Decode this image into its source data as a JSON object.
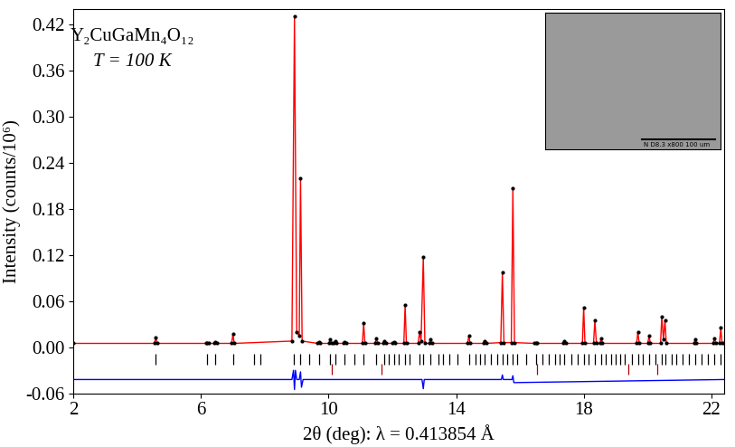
{
  "chart_data": {
    "type": "line",
    "annotations": [
      "Y₂CuGaMn₄O₁₂",
      "T = 100 K"
    ],
    "x_label": "2θ (deg): λ = 0.413854 Å",
    "y_label": "Intensity (counts/10⁶)",
    "xlim": [
      2,
      22.4
    ],
    "xticks": [
      2,
      6,
      10,
      14,
      18,
      22
    ],
    "ylim": [
      -0.06,
      0.44
    ],
    "yticks": [
      {
        "value": -0.06,
        "label": "-0.06"
      },
      {
        "value": 0,
        "label": "0.00"
      },
      {
        "value": 0.06,
        "label": "0.06"
      },
      {
        "value": 0.12,
        "label": "0.12"
      },
      {
        "value": 0.18,
        "label": "0.18"
      },
      {
        "value": 0.24,
        "label": "0.24"
      },
      {
        "value": 0.3,
        "label": "0.30"
      },
      {
        "value": 0.36,
        "label": "0.36"
      },
      {
        "value": 0.42,
        "label": "0.42"
      }
    ],
    "grid": false,
    "inset_text": "N D8.3 x800 100 um",
    "series": [
      {
        "type": "scatter",
        "color": "#000000",
        "marker": "o",
        "x": [
          2.0,
          4.54,
          4.58,
          4.62,
          6.16,
          6.2,
          6.24,
          6.41,
          6.45,
          6.49,
          6.96,
          7.0,
          7.04,
          8.85,
          8.93,
          9.0,
          9.08,
          9.12,
          9.17,
          9.66,
          9.7,
          9.74,
          10.01,
          10.05,
          10.09,
          10.16,
          10.2,
          10.24,
          10.46,
          10.5,
          10.54,
          11.06,
          11.1,
          11.14,
          11.46,
          11.5,
          11.54,
          11.71,
          11.75,
          11.79,
          12.01,
          12.05,
          12.09,
          12.36,
          12.4,
          12.44,
          12.81,
          12.85,
          12.9,
          12.97,
          13.02,
          13.16,
          13.2,
          13.24,
          14.36,
          14.4,
          14.44,
          14.86,
          14.9,
          14.94,
          15.4,
          15.45,
          15.5,
          15.73,
          15.78,
          15.83,
          16.46,
          16.5,
          16.54,
          17.36,
          17.4,
          17.44,
          17.96,
          18.0,
          18.04,
          18.31,
          18.35,
          18.4,
          18.51,
          18.55,
          18.59,
          19.66,
          19.7,
          19.74,
          20.01,
          20.05,
          20.09,
          20.41,
          20.45,
          20.5,
          20.55,
          20.59,
          21.46,
          21.5,
          21.54,
          22.06,
          22.1,
          22.14,
          22.26,
          22.3,
          22.34,
          22.4
        ],
        "values": [
          0.005,
          0.005,
          0.013,
          0.005,
          0.005,
          0.006,
          0.005,
          0.005,
          0.007,
          0.005,
          0.005,
          0.017,
          0.005,
          0.008,
          0.43,
          0.02,
          0.015,
          0.22,
          0.008,
          0.005,
          0.007,
          0.005,
          0.005,
          0.01,
          0.006,
          0.005,
          0.008,
          0.005,
          0.005,
          0.007,
          0.005,
          0.005,
          0.031,
          0.005,
          0.005,
          0.012,
          0.005,
          0.005,
          0.008,
          0.005,
          0.005,
          0.007,
          0.005,
          0.005,
          0.055,
          0.005,
          0.005,
          0.02,
          0.008,
          0.117,
          0.005,
          0.005,
          0.01,
          0.005,
          0.005,
          0.015,
          0.005,
          0.005,
          0.008,
          0.005,
          0.006,
          0.097,
          0.006,
          0.006,
          0.207,
          0.006,
          0.005,
          0.006,
          0.005,
          0.005,
          0.008,
          0.005,
          0.005,
          0.052,
          0.005,
          0.005,
          0.035,
          0.005,
          0.005,
          0.012,
          0.005,
          0.005,
          0.02,
          0.005,
          0.005,
          0.015,
          0.005,
          0.005,
          0.04,
          0.01,
          0.035,
          0.005,
          0.005,
          0.01,
          0.005,
          0.005,
          0.012,
          0.005,
          0.005,
          0.025,
          0.005,
          0.005
        ]
      },
      {
        "type": "line",
        "color": "#ff0000",
        "line_style": "solid",
        "x": [
          2.0,
          4.54,
          4.58,
          4.62,
          6.16,
          6.2,
          6.24,
          6.41,
          6.45,
          6.49,
          6.96,
          7.0,
          7.04,
          8.85,
          8.93,
          9.0,
          9.08,
          9.12,
          9.17,
          9.66,
          9.7,
          9.74,
          10.01,
          10.05,
          10.09,
          10.16,
          10.2,
          10.24,
          10.46,
          10.5,
          10.54,
          11.06,
          11.1,
          11.14,
          11.46,
          11.5,
          11.54,
          11.71,
          11.75,
          11.79,
          12.01,
          12.05,
          12.09,
          12.36,
          12.4,
          12.44,
          12.81,
          12.85,
          12.9,
          12.97,
          13.02,
          13.16,
          13.2,
          13.24,
          14.36,
          14.4,
          14.44,
          14.86,
          14.9,
          14.94,
          15.4,
          15.45,
          15.5,
          15.73,
          15.78,
          15.83,
          16.46,
          16.5,
          16.54,
          17.36,
          17.4,
          17.44,
          17.96,
          18.0,
          18.04,
          18.31,
          18.35,
          18.4,
          18.51,
          18.55,
          18.59,
          19.66,
          19.7,
          19.74,
          20.01,
          20.05,
          20.09,
          20.41,
          20.45,
          20.5,
          20.55,
          20.59,
          21.46,
          21.5,
          21.54,
          22.06,
          22.1,
          22.14,
          22.26,
          22.3,
          22.34,
          22.4
        ],
        "values": [
          0.005,
          0.005,
          0.013,
          0.005,
          0.005,
          0.006,
          0.005,
          0.005,
          0.007,
          0.005,
          0.005,
          0.017,
          0.005,
          0.008,
          0.43,
          0.02,
          0.015,
          0.22,
          0.008,
          0.005,
          0.007,
          0.005,
          0.005,
          0.01,
          0.006,
          0.005,
          0.008,
          0.005,
          0.005,
          0.007,
          0.005,
          0.005,
          0.031,
          0.005,
          0.005,
          0.012,
          0.005,
          0.005,
          0.008,
          0.005,
          0.005,
          0.007,
          0.005,
          0.005,
          0.055,
          0.005,
          0.005,
          0.02,
          0.008,
          0.117,
          0.005,
          0.005,
          0.01,
          0.005,
          0.005,
          0.015,
          0.005,
          0.005,
          0.008,
          0.005,
          0.006,
          0.097,
          0.006,
          0.006,
          0.207,
          0.006,
          0.005,
          0.006,
          0.005,
          0.005,
          0.008,
          0.005,
          0.005,
          0.052,
          0.005,
          0.005,
          0.035,
          0.005,
          0.005,
          0.012,
          0.005,
          0.005,
          0.02,
          0.005,
          0.005,
          0.015,
          0.005,
          0.005,
          0.04,
          0.01,
          0.035,
          0.005,
          0.005,
          0.01,
          0.005,
          0.005,
          0.012,
          0.005,
          0.005,
          0.025,
          0.005,
          0.005
        ]
      },
      {
        "type": "line",
        "color": "#0000ff",
        "line_style": "solid",
        "x": [
          2.0,
          8.85,
          8.9,
          8.93,
          8.96,
          9.0,
          9.08,
          9.12,
          9.15,
          9.2,
          12.93,
          12.97,
          13.0,
          15.42,
          15.45,
          15.48,
          15.75,
          15.78,
          15.81,
          22.4
        ],
        "values": [
          -0.042,
          -0.042,
          -0.03,
          -0.055,
          -0.03,
          -0.042,
          -0.042,
          -0.032,
          -0.052,
          -0.042,
          -0.042,
          -0.054,
          -0.042,
          -0.042,
          -0.036,
          -0.042,
          -0.042,
          -0.037,
          -0.046,
          -0.042
        ]
      },
      {
        "type": "ticks",
        "color": "#000000",
        "level": -0.016,
        "x": [
          4.58,
          6.2,
          6.45,
          7.0,
          7.65,
          7.85,
          8.9,
          9.12,
          9.4,
          9.7,
          10.05,
          10.2,
          10.5,
          10.8,
          11.1,
          11.5,
          11.75,
          11.9,
          12.05,
          12.2,
          12.4,
          12.55,
          12.85,
          12.97,
          13.2,
          13.45,
          13.6,
          13.8,
          14.05,
          14.4,
          14.6,
          14.75,
          14.9,
          15.1,
          15.3,
          15.45,
          15.6,
          15.78,
          15.9,
          16.2,
          16.5,
          16.7,
          16.9,
          17.1,
          17.25,
          17.4,
          17.6,
          17.8,
          18.0,
          18.15,
          18.35,
          18.55,
          18.7,
          18.85,
          19.0,
          19.15,
          19.3,
          19.5,
          19.7,
          19.85,
          20.05,
          20.25,
          20.45,
          20.55,
          20.75,
          20.9,
          21.1,
          21.3,
          21.5,
          21.7,
          21.9,
          22.1,
          22.3
        ]
      },
      {
        "type": "ticks",
        "color": "#b00000",
        "level": -0.028,
        "x": [
          10.1,
          11.65,
          16.55,
          19.4,
          20.3
        ]
      }
    ]
  }
}
